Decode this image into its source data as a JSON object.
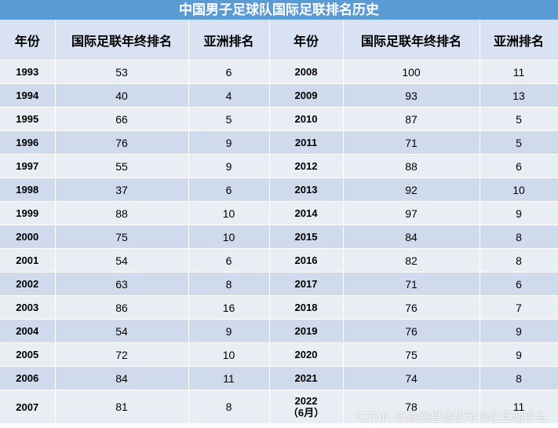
{
  "title": "中国男子足球队国际足联排名历史",
  "headers": [
    "年份",
    "国际足联年终排名",
    "亚洲排名",
    "年份",
    "国际足联年终排名",
    "亚洲排名"
  ],
  "rows": [
    {
      "y1": "1993",
      "f1": "53",
      "a1": "6",
      "y2": "2008",
      "f2": "100",
      "a2": "11"
    },
    {
      "y1": "1994",
      "f1": "40",
      "a1": "4",
      "y2": "2009",
      "f2": "93",
      "a2": "13"
    },
    {
      "y1": "1995",
      "f1": "66",
      "a1": "5",
      "y2": "2010",
      "f2": "87",
      "a2": "5"
    },
    {
      "y1": "1996",
      "f1": "76",
      "a1": "9",
      "y2": "2011",
      "f2": "71",
      "a2": "5"
    },
    {
      "y1": "1997",
      "f1": "55",
      "a1": "9",
      "y2": "2012",
      "f2": "88",
      "a2": "6"
    },
    {
      "y1": "1998",
      "f1": "37",
      "a1": "6",
      "y2": "2013",
      "f2": "92",
      "a2": "10"
    },
    {
      "y1": "1999",
      "f1": "88",
      "a1": "10",
      "y2": "2014",
      "f2": "97",
      "a2": "9"
    },
    {
      "y1": "2000",
      "f1": "75",
      "a1": "10",
      "y2": "2015",
      "f2": "84",
      "a2": "8"
    },
    {
      "y1": "2001",
      "f1": "54",
      "a1": "6",
      "y2": "2016",
      "f2": "82",
      "a2": "8"
    },
    {
      "y1": "2002",
      "f1": "63",
      "a1": "8",
      "y2": "2017",
      "f2": "71",
      "a2": "6"
    },
    {
      "y1": "2003",
      "f1": "86",
      "a1": "16",
      "y2": "2018",
      "f2": "76",
      "a2": "7"
    },
    {
      "y1": "2004",
      "f1": "54",
      "a1": "9",
      "y2": "2019",
      "f2": "76",
      "a2": "9"
    },
    {
      "y1": "2005",
      "f1": "72",
      "a1": "10",
      "y2": "2020",
      "f2": "75",
      "a2": "9"
    },
    {
      "y1": "2006",
      "f1": "84",
      "a1": "11",
      "y2": "2021",
      "f2": "74",
      "a2": "8"
    }
  ],
  "last_row": {
    "y1": "2007",
    "f1": "81",
    "a1": "8",
    "y2_line1": "2022",
    "y2_line2": "（6月）",
    "f2": "78",
    "a2": "11"
  },
  "watermark": "CSDN @迪赛智慧数可视化互动平台"
}
